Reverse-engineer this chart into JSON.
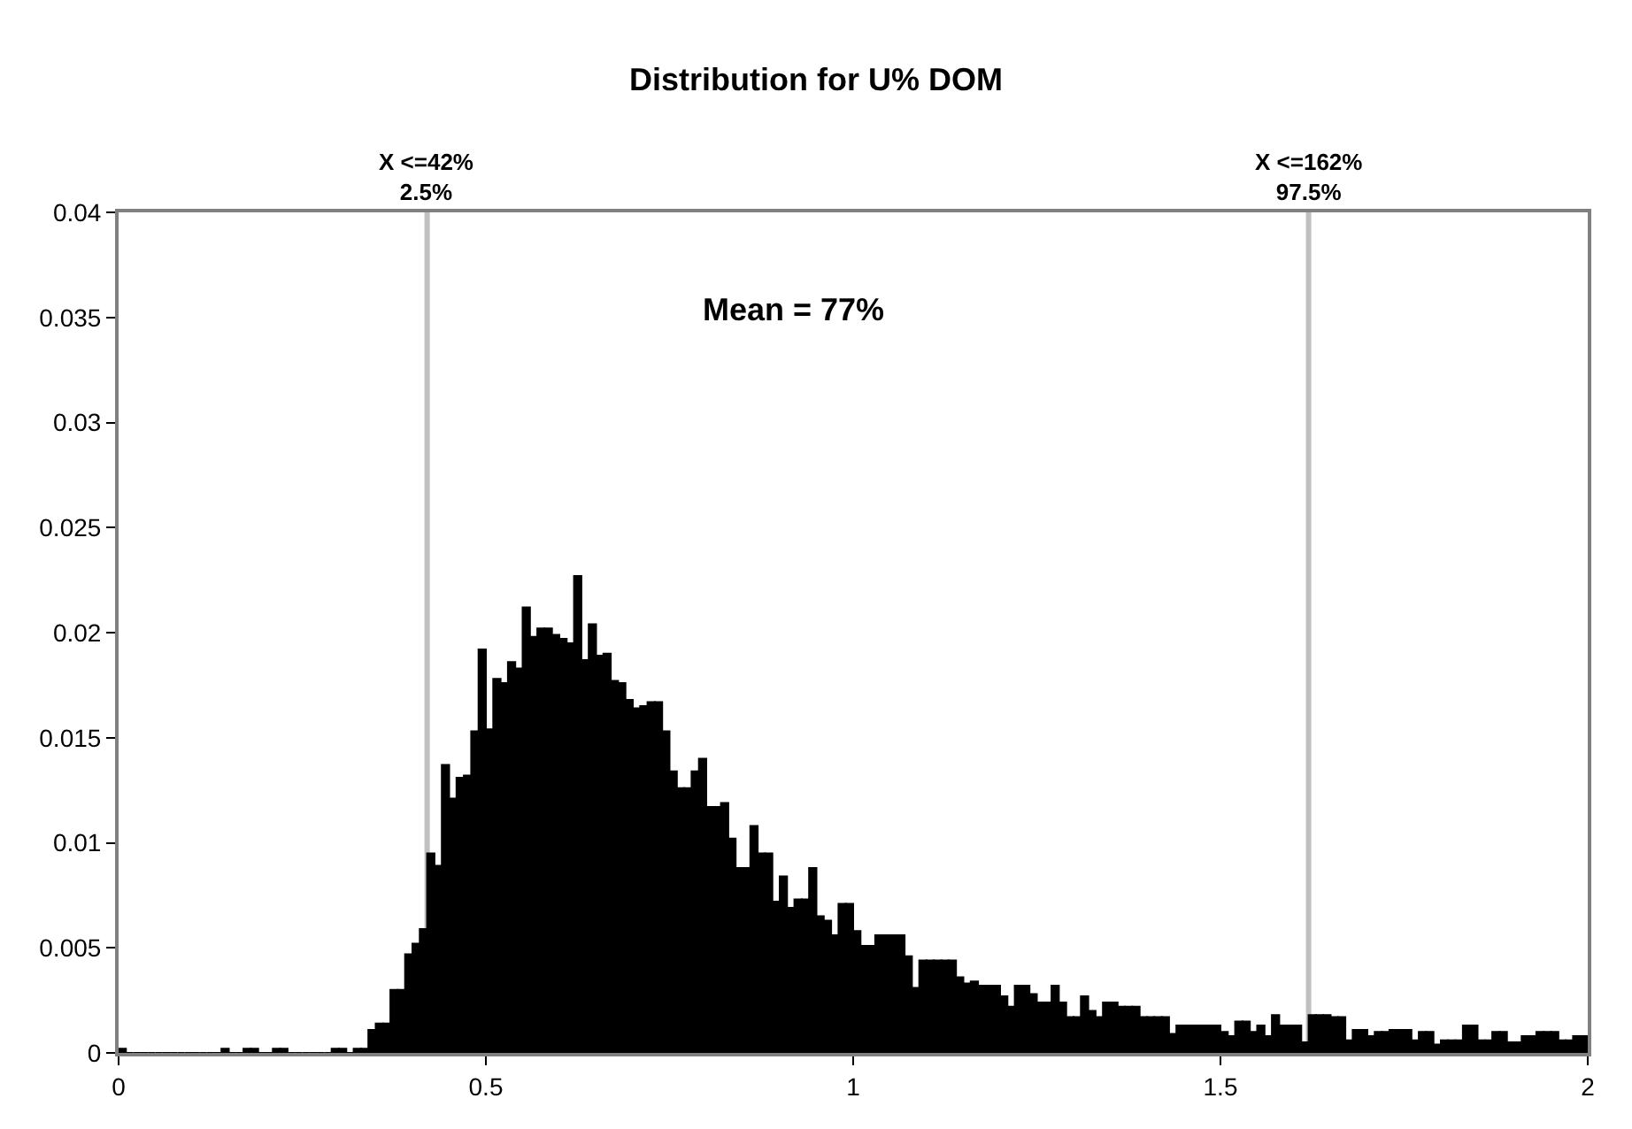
{
  "chart_data": {
    "type": "histogram",
    "title": "Distribution for U% DOM",
    "bins": [
      0,
      0.01,
      0.02,
      0.03,
      0.04,
      0.05,
      0.06,
      0.07,
      0.08,
      0.09,
      0.1,
      0.11,
      0.12,
      0.13,
      0.14,
      0.15,
      0.16,
      0.17,
      0.18,
      0.19,
      0.2,
      0.21,
      0.22,
      0.23,
      0.24,
      0.25,
      0.26,
      0.27,
      0.28,
      0.29,
      0.3,
      0.31,
      0.32,
      0.33,
      0.34,
      0.35,
      0.36,
      0.37,
      0.38,
      0.39,
      0.4,
      0.41,
      0.42,
      0.43,
      0.44,
      0.45,
      0.46,
      0.47,
      0.48,
      0.49,
      0.5,
      0.51,
      0.52,
      0.53,
      0.54,
      0.55,
      0.56,
      0.57,
      0.58,
      0.59,
      0.6,
      0.61,
      0.62,
      0.63,
      0.64,
      0.65,
      0.66,
      0.67,
      0.68,
      0.69,
      0.7,
      0.71,
      0.72,
      0.73,
      0.74,
      0.75,
      0.76,
      0.77,
      0.78,
      0.79,
      0.8,
      0.81,
      0.82,
      0.83,
      0.84,
      0.85,
      0.86,
      0.87,
      0.88,
      0.89,
      0.9,
      0.91,
      0.92,
      0.93,
      0.94,
      0.95,
      0.96,
      0.97,
      0.98,
      0.99,
      1,
      1.01,
      1.02,
      1.03,
      1.04,
      1.05,
      1.06,
      1.07,
      1.08,
      1.09,
      1.1,
      1.11,
      1.12,
      1.13,
      1.14,
      1.15,
      1.16,
      1.17,
      1.18,
      1.19,
      1.2,
      1.21,
      1.22,
      1.23,
      1.24,
      1.25,
      1.26,
      1.27,
      1.28,
      1.29,
      1.3,
      1.31,
      1.32,
      1.33,
      1.34,
      1.35,
      1.36,
      1.37,
      1.38,
      1.39,
      1.4,
      1.41,
      1.42,
      1.43,
      1.44,
      1.45,
      1.46,
      1.47,
      1.48,
      1.49,
      1.5,
      1.51,
      1.52,
      1.53,
      1.54,
      1.55,
      1.56,
      1.57,
      1.58,
      1.59,
      1.6,
      1.61,
      1.62,
      1.63,
      1.64,
      1.65,
      1.66,
      1.67,
      1.68,
      1.69,
      1.7,
      1.71,
      1.72,
      1.73,
      1.74,
      1.75,
      1.76,
      1.77,
      1.78,
      1.79,
      1.8,
      1.81,
      1.82,
      1.83,
      1.84,
      1.85,
      1.86,
      1.87,
      1.88,
      1.89,
      1.9,
      1.91,
      1.92,
      1.93,
      1.94,
      1.95,
      1.96,
      1.97,
      1.98,
      1.99,
      2
    ],
    "values": [
      0.0002,
      0,
      0,
      0,
      0,
      0,
      0,
      0,
      0,
      0,
      0,
      0,
      0,
      0,
      0.0002,
      0,
      0,
      0.0002,
      0.0002,
      0,
      0,
      0.0002,
      0.0002,
      0,
      0,
      0,
      0,
      0,
      0,
      0.0002,
      0.0002,
      0,
      0.0002,
      0.0002,
      0.0011,
      0.0014,
      0.0014,
      0.003,
      0.003,
      0.0047,
      0.0052,
      0.0059,
      0.0095,
      0.0089,
      0.0137,
      0.0121,
      0.0131,
      0.0132,
      0.0153,
      0.0192,
      0.0154,
      0.0178,
      0.0176,
      0.0186,
      0.0183,
      0.0212,
      0.0198,
      0.0202,
      0.0202,
      0.0199,
      0.0197,
      0.0195,
      0.0227,
      0.0187,
      0.0204,
      0.0189,
      0.019,
      0.0177,
      0.0176,
      0.0168,
      0.0164,
      0.0165,
      0.0167,
      0.0167,
      0.0153,
      0.0134,
      0.0126,
      0.0126,
      0.0134,
      0.014,
      0.0117,
      0.0117,
      0.0119,
      0.0102,
      0.0088,
      0.0088,
      0.0108,
      0.0095,
      0.0095,
      0.0072,
      0.0084,
      0.0069,
      0.0073,
      0.0073,
      0.0088,
      0.0065,
      0.0063,
      0.0056,
      0.0071,
      0.0071,
      0.0058,
      0.0051,
      0.0051,
      0.0056,
      0.0056,
      0.0056,
      0.0056,
      0.0046,
      0.0031,
      0.0044,
      0.0044,
      0.0044,
      0.0044,
      0.0044,
      0.0036,
      0.0033,
      0.0034,
      0.0032,
      0.0032,
      0.0032,
      0.0027,
      0.0022,
      0.0032,
      0.0032,
      0.0028,
      0.0024,
      0.0024,
      0.0032,
      0.0024,
      0.0017,
      0.0017,
      0.0027,
      0.002,
      0.0017,
      0.0024,
      0.0024,
      0.0022,
      0.0022,
      0.0022,
      0.0017,
      0.0017,
      0.0017,
      0.0017,
      0.0009,
      0.0013,
      0.0013,
      0.0013,
      0.0013,
      0.0013,
      0.0013,
      0.001,
      0.0008,
      0.0015,
      0.0015,
      0.001,
      0.0013,
      0.0008,
      0.0018,
      0.0013,
      0.0013,
      0.0013,
      0.0005,
      0.0018,
      0.0018,
      0.0018,
      0.0017,
      0.0017,
      0.0006,
      0.0011,
      0.0011,
      0.0008,
      0.001,
      0.001,
      0.0011,
      0.0011,
      0.0011,
      0.0006,
      0.001,
      0.001,
      0.0004,
      0.0006,
      0.0006,
      0.0006,
      0.0013,
      0.0013,
      0.0006,
      0.0006,
      0.001,
      0.001,
      0.0005,
      0.0005,
      0.0008,
      0.0008,
      0.001,
      0.001,
      0.001,
      0.0006,
      0.0006,
      0.0008,
      0.0008
    ],
    "color": "#000000",
    "xlim": [
      0,
      2
    ],
    "xticks": [
      0,
      0.5,
      1,
      1.5,
      2
    ],
    "ylim": [
      0,
      0.04
    ],
    "yticks": [
      0,
      0.005,
      0.01,
      0.015,
      0.02,
      0.025,
      0.03,
      0.035,
      0.04
    ],
    "ref_lines": [
      {
        "axis": "x",
        "value": 0.42,
        "label": "X <=42%\n2.5%",
        "color": "#c0c0c0"
      },
      {
        "axis": "x",
        "value": 1.62,
        "label": "X <=162%\n97.5%",
        "color": "#c0c0c0"
      }
    ],
    "annotations": [
      "Mean = 77%"
    ],
    "grid": false
  }
}
